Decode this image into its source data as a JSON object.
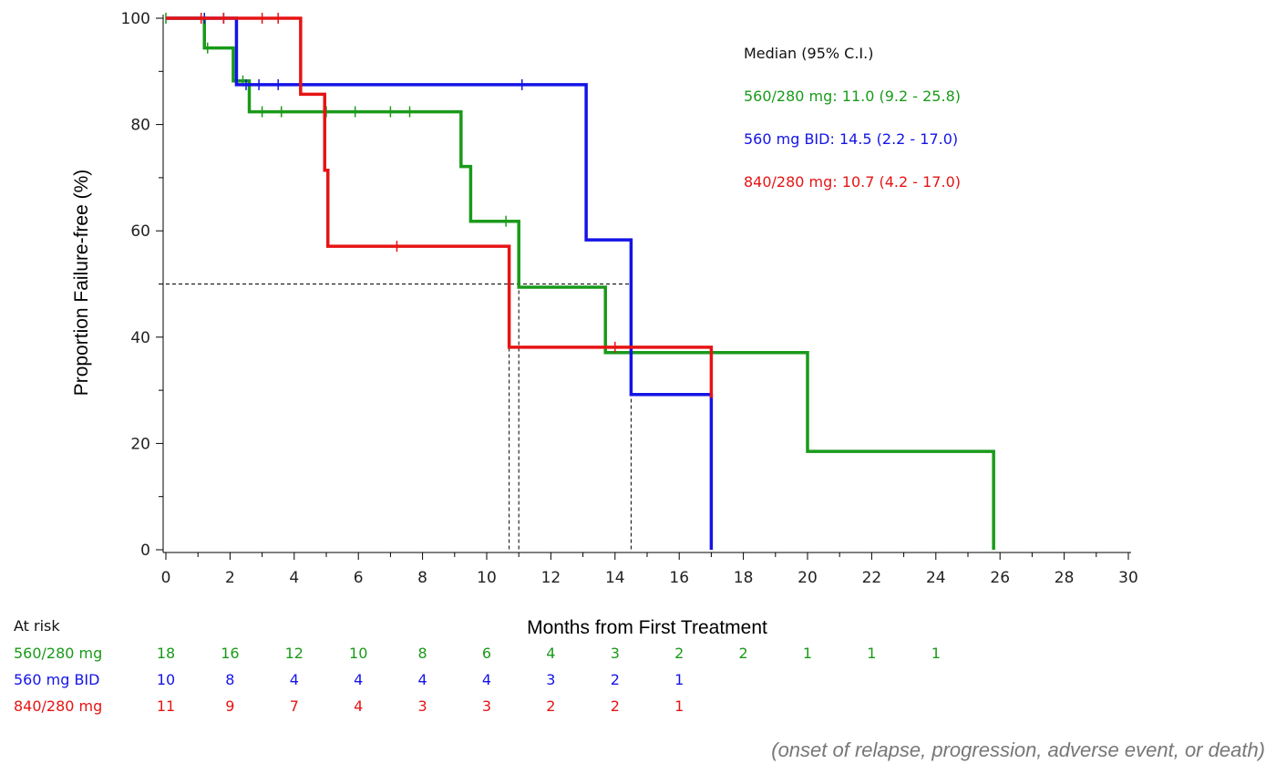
{
  "chart_data": {
    "type": "line",
    "subtype": "kaplan-meier step",
    "xlabel": "Months from First Treatment",
    "ylabel": "Proportion Failure-free (%)",
    "xlim": [
      0,
      30
    ],
    "ylim": [
      0,
      100
    ],
    "xticks": [
      0,
      2,
      4,
      6,
      8,
      10,
      12,
      14,
      16,
      18,
      20,
      22,
      24,
      26,
      28,
      30
    ],
    "yticks": [
      0,
      20,
      40,
      60,
      80,
      100
    ],
    "x_minor_step": 1,
    "y_minor_step": 10,
    "grid": false,
    "legend": {
      "title": "Median (95% C.I.)",
      "placement": "top-right",
      "entries": [
        "560/280 mg: 11.0 (9.2 - 25.8)",
        "560 mg BID: 14.5 (2.2 - 17.0)",
        "840/280 mg: 10.7 (4.2 - 17.0)"
      ]
    },
    "series": [
      {
        "name": "560/280 mg",
        "color": "#1a9a1a",
        "steps": [
          [
            0,
            100
          ],
          [
            1.2,
            94.4
          ],
          [
            2.1,
            88.2
          ],
          [
            2.6,
            82.4
          ],
          [
            9.2,
            72.1
          ],
          [
            9.5,
            61.8
          ],
          [
            11.0,
            49.4
          ],
          [
            13.7,
            37.1
          ],
          [
            20.0,
            18.5
          ],
          [
            25.8,
            0
          ]
        ],
        "censored": [
          [
            0,
            100
          ],
          [
            1.3,
            94.4
          ],
          [
            2.4,
            88.2
          ],
          [
            3.0,
            82.4
          ],
          [
            3.6,
            82.4
          ],
          [
            5.0,
            82.4
          ],
          [
            5.9,
            82.4
          ],
          [
            7.0,
            82.4
          ],
          [
            7.6,
            82.4
          ],
          [
            10.6,
            61.8
          ]
        ]
      },
      {
        "name": "560 mg BID",
        "color": "#1414e6",
        "steps": [
          [
            0,
            100
          ],
          [
            2.2,
            87.5
          ],
          [
            13.1,
            58.3
          ],
          [
            14.5,
            29.2
          ],
          [
            17.0,
            0
          ]
        ],
        "censored": [
          [
            1.2,
            100
          ],
          [
            1.8,
            100
          ],
          [
            2.5,
            87.5
          ],
          [
            2.9,
            87.5
          ],
          [
            3.5,
            87.5
          ],
          [
            11.1,
            87.5
          ]
        ]
      },
      {
        "name": "840/280 mg",
        "color": "#e61414",
        "steps": [
          [
            0,
            100
          ],
          [
            4.2,
            85.7
          ],
          [
            4.95,
            71.4
          ],
          [
            5.05,
            57.1
          ],
          [
            10.7,
            38.1
          ],
          [
            17.0,
            28.6
          ]
        ],
        "censored": [
          [
            1.1,
            100
          ],
          [
            1.8,
            100
          ],
          [
            3.0,
            100
          ],
          [
            3.5,
            100
          ],
          [
            7.2,
            57.1
          ],
          [
            14.0,
            38.1
          ]
        ]
      }
    ],
    "median_reference": {
      "y": 50,
      "x_values": [
        10.7,
        11.0,
        14.5
      ]
    },
    "at_risk": {
      "header": "At risk",
      "time_points": [
        0,
        2,
        4,
        6,
        8,
        10,
        12,
        14,
        16,
        18,
        20,
        22,
        24
      ],
      "rows": [
        {
          "label": "560/280 mg",
          "color": "#1a9a1a",
          "counts": [
            "18",
            "16",
            "12",
            "10",
            "8",
            "6",
            "4",
            "3",
            "2",
            "2",
            "1",
            "1",
            "1"
          ]
        },
        {
          "label": "560 mg BID",
          "color": "#1414e6",
          "counts": [
            "10",
            "8",
            "4",
            "4",
            "4",
            "4",
            "3",
            "2",
            "1"
          ]
        },
        {
          "label": "840/280 mg",
          "color": "#e61414",
          "counts": [
            "11",
            "9",
            "7",
            "4",
            "3",
            "3",
            "2",
            "2",
            "1"
          ]
        }
      ]
    },
    "footnote": "(onset of relapse, progression, adverse event, or death)"
  }
}
